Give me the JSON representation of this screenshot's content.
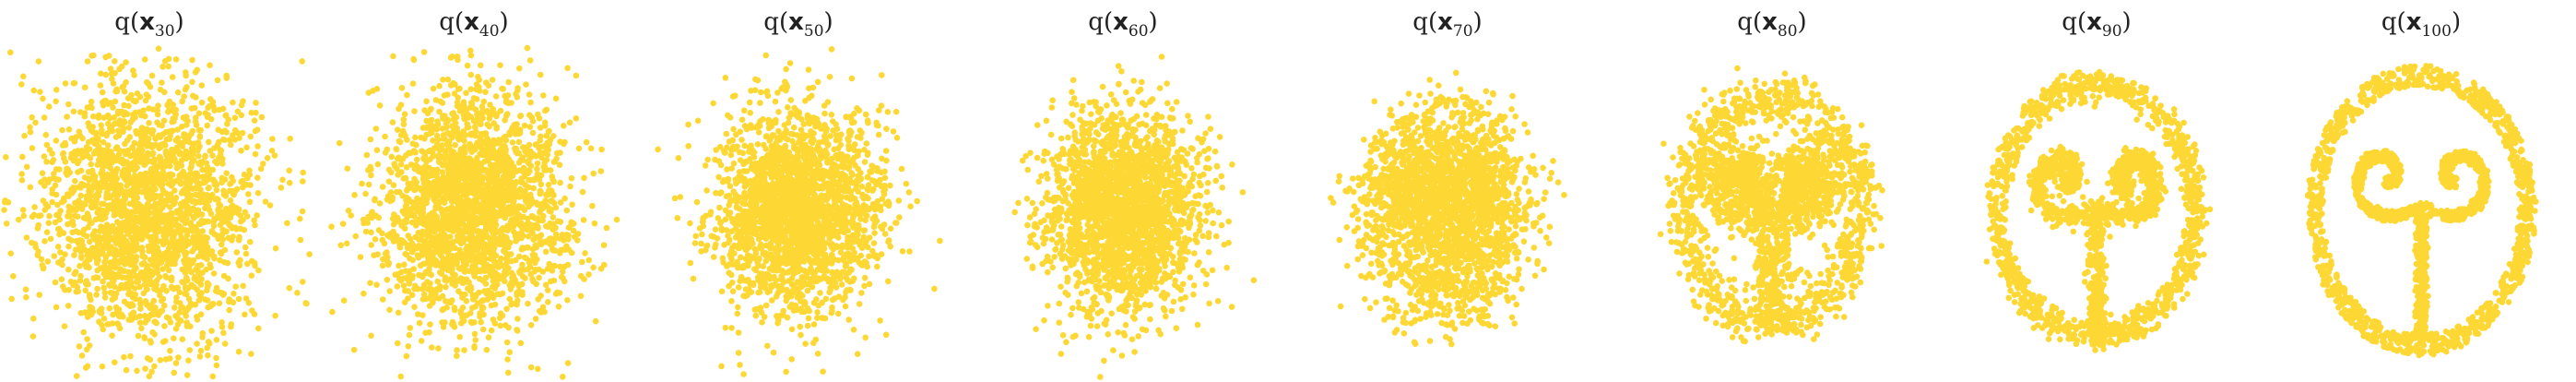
{
  "figure": {
    "point_color": "#FDD835"
  },
  "chart_data": [
    {
      "type": "scatter",
      "title_var": "q",
      "title_sym": "x",
      "title_sub": "30",
      "progress": 0.0,
      "grid": false,
      "axes": "off"
    },
    {
      "type": "scatter",
      "title_var": "q",
      "title_sym": "x",
      "title_sub": "40",
      "progress": 0.1,
      "grid": false,
      "axes": "off"
    },
    {
      "type": "scatter",
      "title_var": "q",
      "title_sym": "x",
      "title_sub": "50",
      "progress": 0.28,
      "grid": false,
      "axes": "off"
    },
    {
      "type": "scatter",
      "title_var": "q",
      "title_sym": "x",
      "title_sub": "60",
      "progress": 0.42,
      "grid": false,
      "axes": "off"
    },
    {
      "type": "scatter",
      "title_var": "q",
      "title_sym": "x",
      "title_sub": "70",
      "progress": 0.6,
      "grid": false,
      "axes": "off"
    },
    {
      "type": "scatter",
      "title_var": "q",
      "title_sym": "x",
      "title_sub": "80",
      "progress": 0.82,
      "grid": false,
      "axes": "off"
    },
    {
      "type": "scatter",
      "title_var": "q",
      "title_sym": "x",
      "title_sub": "90",
      "progress": 0.93,
      "grid": false,
      "axes": "off"
    },
    {
      "type": "scatter",
      "title_var": "q",
      "title_sym": "x",
      "title_sub": "100",
      "progress": 1.0,
      "grid": false,
      "axes": "off"
    }
  ]
}
